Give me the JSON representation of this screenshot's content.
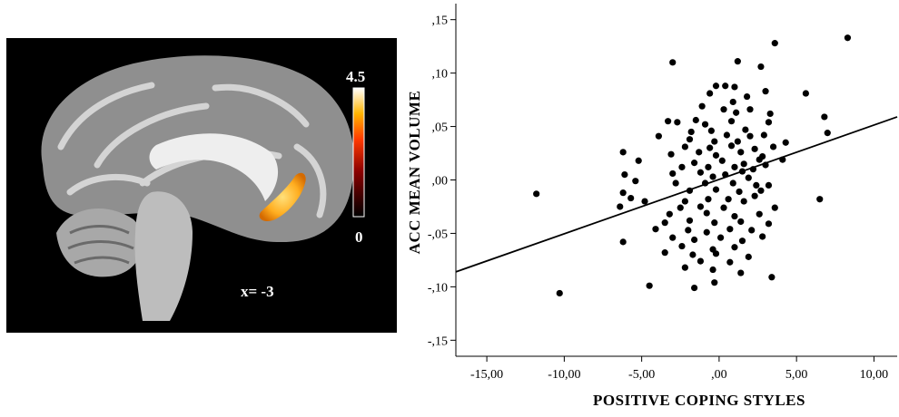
{
  "brain_panel": {
    "slice_label": "x= -3",
    "colorbar": {
      "max_label": "4.5",
      "min_label": "0",
      "max_value": 4.5,
      "min_value": 0
    }
  },
  "chart_data": {
    "type": "scatter",
    "title": "",
    "xlabel": "POSITIVE  COPING STYLES",
    "ylabel": "ACC MEAN VOLUME",
    "xlim": [
      -17,
      11.5
    ],
    "ylim": [
      -0.165,
      0.165
    ],
    "xticks": [
      -15,
      -10,
      -5,
      0,
      5,
      10
    ],
    "xtick_labels": [
      "-15,00",
      "-10,00",
      "-5,00",
      ",00",
      "5,00",
      "10,00"
    ],
    "yticks": [
      -0.15,
      -0.1,
      -0.05,
      0.0,
      0.05,
      0.1,
      0.15
    ],
    "ytick_labels": [
      "-,15",
      "-,10",
      "-,05",
      ",00",
      ",05",
      ",10",
      ",15"
    ],
    "grid": false,
    "regression_line": {
      "x": [
        -17,
        11.5
      ],
      "y": [
        -0.086,
        0.059
      ]
    },
    "points": [
      [
        8.3,
        0.133
      ],
      [
        3.6,
        0.128
      ],
      [
        1.2,
        0.111
      ],
      [
        -3.0,
        0.11
      ],
      [
        2.7,
        0.106
      ],
      [
        5.6,
        0.081
      ],
      [
        3.0,
        0.083
      ],
      [
        -0.2,
        0.088
      ],
      [
        0.4,
        0.088
      ],
      [
        1.0,
        0.087
      ],
      [
        -0.6,
        0.081
      ],
      [
        1.8,
        0.078
      ],
      [
        0.9,
        0.073
      ],
      [
        -1.1,
        0.069
      ],
      [
        0.3,
        0.066
      ],
      [
        1.1,
        0.063
      ],
      [
        2.0,
        0.066
      ],
      [
        3.3,
        0.062
      ],
      [
        6.8,
        0.059
      ],
      [
        -3.3,
        0.055
      ],
      [
        -1.5,
        0.056
      ],
      [
        -2.7,
        0.054
      ],
      [
        -0.9,
        0.052
      ],
      [
        0.8,
        0.055
      ],
      [
        3.2,
        0.054
      ],
      [
        -1.8,
        0.045
      ],
      [
        -0.5,
        0.046
      ],
      [
        0.5,
        0.042
      ],
      [
        1.7,
        0.047
      ],
      [
        2.9,
        0.042
      ],
      [
        7.0,
        0.044
      ],
      [
        -3.9,
        0.041
      ],
      [
        -1.9,
        0.038
      ],
      [
        -0.3,
        0.036
      ],
      [
        1.2,
        0.036
      ],
      [
        2.0,
        0.041
      ],
      [
        4.3,
        0.035
      ],
      [
        -2.2,
        0.031
      ],
      [
        -0.6,
        0.03
      ],
      [
        0.8,
        0.032
      ],
      [
        2.3,
        0.029
      ],
      [
        3.5,
        0.031
      ],
      [
        -6.2,
        0.026
      ],
      [
        -3.1,
        0.024
      ],
      [
        -1.3,
        0.026
      ],
      [
        -0.2,
        0.023
      ],
      [
        1.4,
        0.026
      ],
      [
        2.8,
        0.022
      ],
      [
        -5.2,
        0.018
      ],
      [
        -1.6,
        0.016
      ],
      [
        0.2,
        0.018
      ],
      [
        1.6,
        0.015
      ],
      [
        2.6,
        0.019
      ],
      [
        4.1,
        0.019
      ],
      [
        -2.4,
        0.012
      ],
      [
        -0.7,
        0.012
      ],
      [
        1.0,
        0.012
      ],
      [
        2.2,
        0.01
      ],
      [
        3.0,
        0.014
      ],
      [
        -6.1,
        0.005
      ],
      [
        -3.0,
        0.006
      ],
      [
        -1.2,
        0.007
      ],
      [
        0.4,
        0.005
      ],
      [
        1.5,
        0.008
      ],
      [
        -0.4,
        0.003
      ],
      [
        1.9,
        0.002
      ],
      [
        -5.4,
        -0.001
      ],
      [
        -2.8,
        -0.003
      ],
      [
        -0.9,
        -0.003
      ],
      [
        0.9,
        -0.003
      ],
      [
        2.4,
        -0.005
      ],
      [
        3.2,
        -0.005
      ],
      [
        -11.8,
        -0.013
      ],
      [
        -6.2,
        -0.012
      ],
      [
        -1.9,
        -0.01
      ],
      [
        -0.2,
        -0.009
      ],
      [
        1.3,
        -0.011
      ],
      [
        2.7,
        -0.01
      ],
      [
        -5.7,
        -0.017
      ],
      [
        -4.8,
        -0.02
      ],
      [
        -2.2,
        -0.02
      ],
      [
        -0.7,
        -0.018
      ],
      [
        0.6,
        -0.018
      ],
      [
        1.6,
        -0.02
      ],
      [
        2.3,
        -0.015
      ],
      [
        6.5,
        -0.018
      ],
      [
        -6.4,
        -0.025
      ],
      [
        -2.5,
        -0.026
      ],
      [
        -1.2,
        -0.025
      ],
      [
        0.3,
        -0.026
      ],
      [
        3.6,
        -0.026
      ],
      [
        -3.2,
        -0.032
      ],
      [
        -0.8,
        -0.031
      ],
      [
        1.0,
        -0.034
      ],
      [
        2.6,
        -0.032
      ],
      [
        -3.5,
        -0.04
      ],
      [
        -1.9,
        -0.038
      ],
      [
        -0.3,
        -0.04
      ],
      [
        1.4,
        -0.039
      ],
      [
        3.2,
        -0.041
      ],
      [
        -4.1,
        -0.046
      ],
      [
        -2.0,
        -0.047
      ],
      [
        -0.8,
        -0.049
      ],
      [
        0.7,
        -0.046
      ],
      [
        2.1,
        -0.047
      ],
      [
        -6.2,
        -0.058
      ],
      [
        -3.0,
        -0.054
      ],
      [
        -1.6,
        -0.056
      ],
      [
        0.1,
        -0.054
      ],
      [
        1.5,
        -0.057
      ],
      [
        2.8,
        -0.053
      ],
      [
        -2.4,
        -0.062
      ],
      [
        -0.4,
        -0.065
      ],
      [
        1.0,
        -0.063
      ],
      [
        -3.5,
        -0.068
      ],
      [
        -1.7,
        -0.07
      ],
      [
        -0.2,
        -0.069
      ],
      [
        1.9,
        -0.072
      ],
      [
        -1.2,
        -0.076
      ],
      [
        0.7,
        -0.077
      ],
      [
        -2.2,
        -0.082
      ],
      [
        -0.4,
        -0.084
      ],
      [
        1.4,
        -0.087
      ],
      [
        3.4,
        -0.091
      ],
      [
        -4.5,
        -0.099
      ],
      [
        -1.6,
        -0.101
      ],
      [
        -0.3,
        -0.096
      ],
      [
        -10.3,
        -0.106
      ]
    ]
  }
}
